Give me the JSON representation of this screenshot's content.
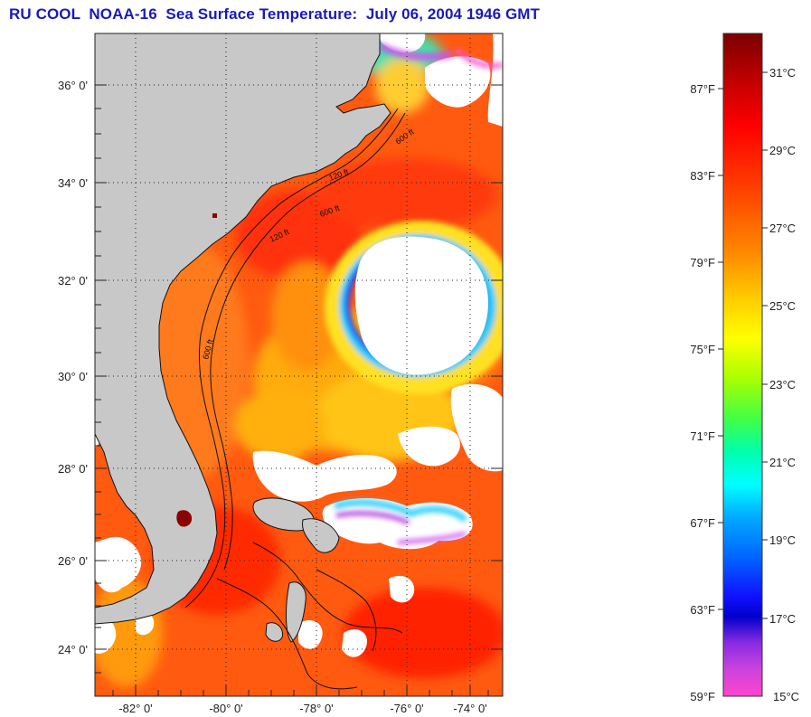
{
  "title": "RU COOL  NOAA-16  Sea Surface Temperature:  July 06, 2004 1946 GMT",
  "map": {
    "lat_labels": [
      "36° 0'",
      "34° 0'",
      "32° 0'",
      "30° 0'",
      "28° 0'",
      "26° 0'",
      "24° 0'"
    ],
    "lon_labels": [
      "-82° 0'",
      "-80° 0'",
      "-78° 0'",
      "-76° 0'",
      "-74° 0'"
    ],
    "contour_labels": [
      "600 ft",
      "120 ft",
      "600 ft",
      "120 ft",
      "600 ft"
    ]
  },
  "colorbar": {
    "fahrenheit": [
      "87°F",
      "83°F",
      "79°F",
      "75°F",
      "71°F",
      "67°F",
      "63°F",
      "59°F"
    ],
    "celsius": [
      "31°C",
      "29°C",
      "27°C",
      "25°C",
      "23°C",
      "21°C",
      "19°C",
      "17°C",
      "15°C"
    ]
  },
  "colors": {
    "title": "#1a1ab8",
    "land": "#c8c8c8",
    "ocean_warm": "#ff5a10",
    "cloud": "#ffffff"
  }
}
